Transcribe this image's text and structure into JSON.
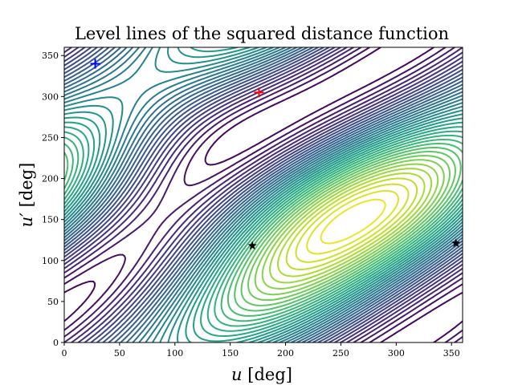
{
  "chart_data": {
    "type": "contour",
    "title": "Level lines of the squared distance function",
    "xlabel_var": "u",
    "ylabel_var": "u′",
    "xlabel_unit": "[deg]",
    "ylabel_unit": "[deg]",
    "xlim": [
      0,
      360
    ],
    "ylim": [
      0,
      360
    ],
    "xticks": [
      "0",
      "50",
      "100",
      "150",
      "200",
      "250",
      "300",
      "350"
    ],
    "yticks": [
      "0",
      "50",
      "100",
      "150",
      "200",
      "250",
      "300",
      "350"
    ],
    "colormap": "viridis",
    "markers": [
      {
        "x": 28,
        "y": 340,
        "symbol": "+",
        "color": "#0000ff"
      },
      {
        "x": 176,
        "y": 305,
        "symbol": "+",
        "color": "#ff0000"
      },
      {
        "x": 170,
        "y": 118,
        "symbol": "star",
        "color": "#000000"
      },
      {
        "x": 354,
        "y": 121,
        "symbol": "star",
        "color": "#000000"
      }
    ]
  }
}
